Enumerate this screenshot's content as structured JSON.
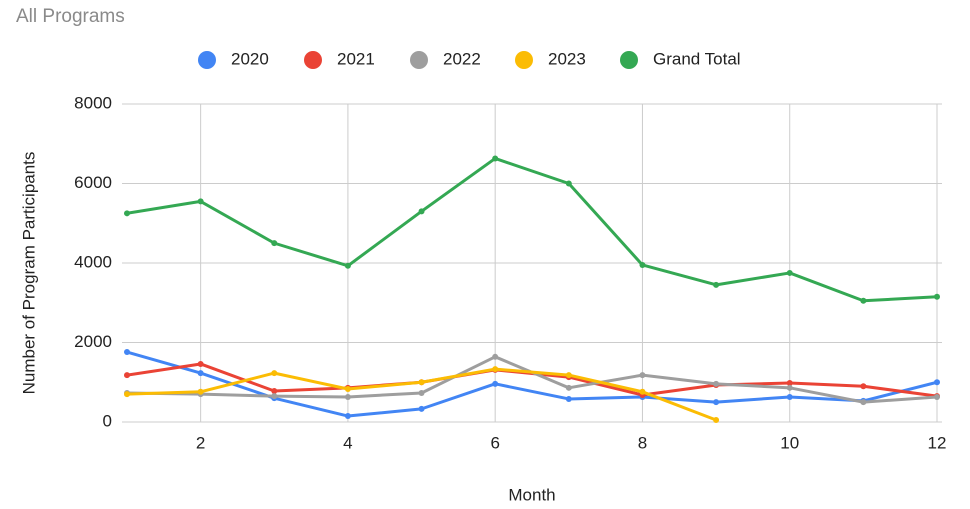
{
  "chart_data": {
    "type": "line",
    "title": "All Programs",
    "x_label": "Month",
    "y_label": "Number of Program Participants",
    "x": [
      1,
      2,
      3,
      4,
      5,
      6,
      7,
      8,
      9,
      10,
      11,
      12
    ],
    "series": [
      {
        "name": "2020",
        "color": "#4285f4",
        "values": [
          1760,
          1230,
          600,
          150,
          330,
          960,
          580,
          630,
          500,
          630,
          530,
          1000
        ]
      },
      {
        "name": "2021",
        "color": "#ea4335",
        "values": [
          1180,
          1460,
          780,
          860,
          1000,
          1310,
          1130,
          680,
          930,
          980,
          900,
          650
        ]
      },
      {
        "name": "2022",
        "color": "#9e9e9e",
        "values": [
          730,
          700,
          650,
          630,
          730,
          1640,
          860,
          1180,
          960,
          860,
          500,
          630
        ]
      },
      {
        "name": "2023",
        "color": "#fbbc04",
        "values": [
          700,
          760,
          1230,
          830,
          1000,
          1330,
          1180,
          760,
          50,
          null,
          null,
          null
        ]
      },
      {
        "name": "Grand Total",
        "color": "#34a853",
        "values": [
          5250,
          5550,
          4500,
          3930,
          5300,
          6630,
          6000,
          3950,
          3450,
          3750,
          3050,
          3150
        ]
      }
    ],
    "xlim": [
      1,
      12
    ],
    "xticks": [
      2,
      4,
      6,
      8,
      10,
      12
    ],
    "ylim": [
      0,
      8000
    ],
    "yticks": [
      0,
      2000,
      4000,
      6000,
      8000
    ],
    "grid": true,
    "legend": "top"
  }
}
